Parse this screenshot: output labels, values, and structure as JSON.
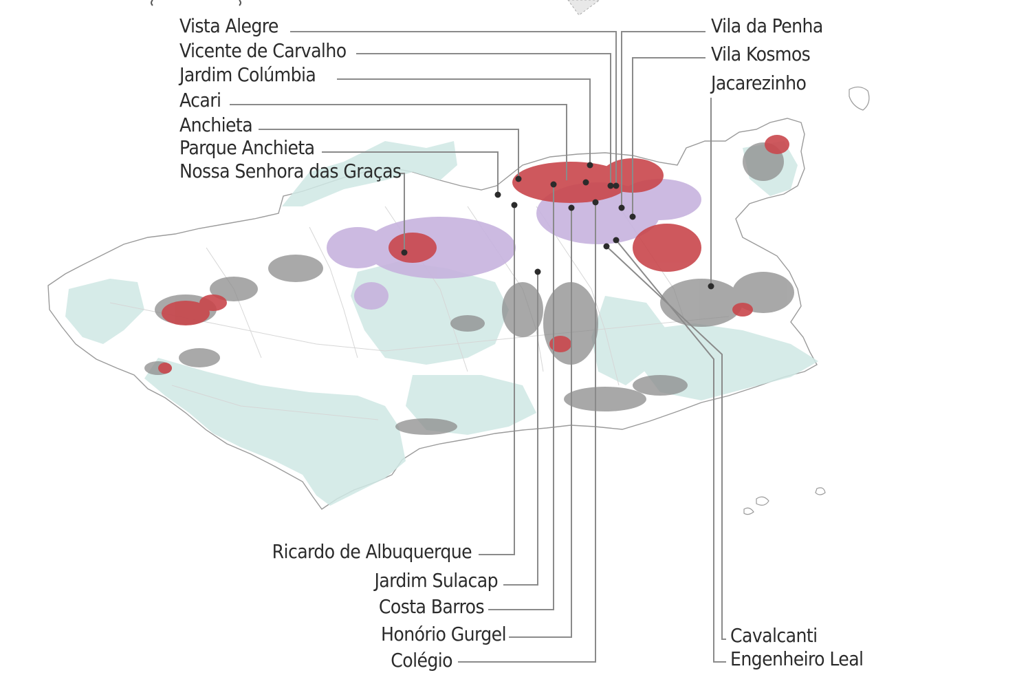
{
  "map": {
    "colors": {
      "land_fill": "#ffffff",
      "coast_stroke": "#9a9a9a",
      "green_area": "#cfe8e4",
      "red_cluster": "#c9474c",
      "lilac_cluster": "#c7b3de",
      "gray_cluster": "#8c8c8c",
      "leader_line": "#8a8a8a",
      "marker": "#2b2b2b",
      "label_text": "#2b2b2b"
    },
    "labels": {
      "vista_alegre": "Vista Alegre",
      "vicente_de_carvalho": "Vicente de Carvalho",
      "jardim_columbia": "Jardim Colúmbia",
      "acari": "Acari",
      "anchieta": "Anchieta",
      "parque_anchieta": "Parque Anchieta",
      "nossa_senhora_das_gracas": "Nossa Senhora das Graças",
      "vila_da_penha": "Vila da Penha",
      "vila_kosmos": "Vila Kosmos",
      "jacarezinho": "Jacarezinho",
      "ricardo_de_albuquerque": "Ricardo de Albuquerque",
      "jardim_sulacap": "Jardim Sulacap",
      "costa_barros": "Costa Barros",
      "honorio_gurgel": "Honório Gurgel",
      "colegio": "Colégio",
      "cavalcanti": "Cavalcanti",
      "engenheiro_leal": "Engenheiro Leal"
    }
  }
}
